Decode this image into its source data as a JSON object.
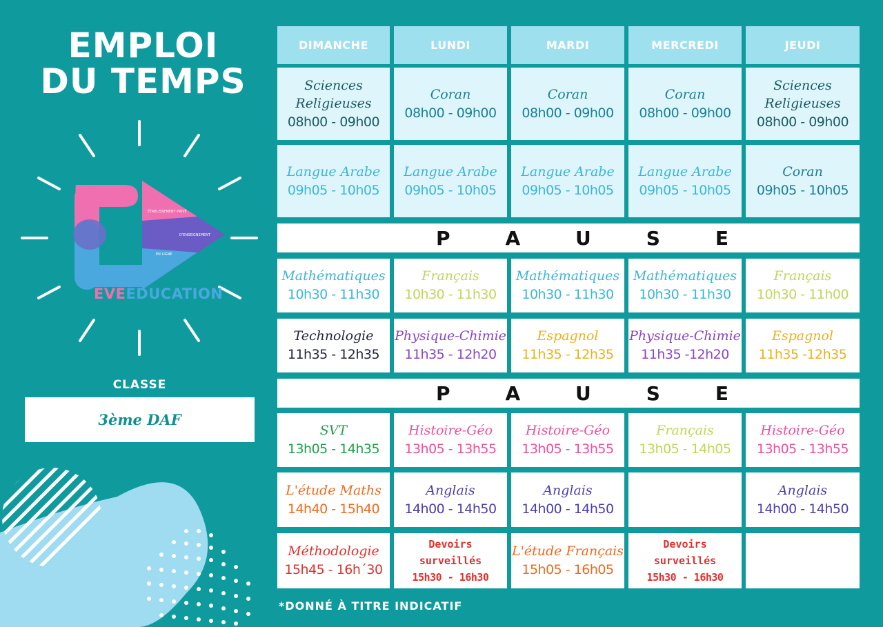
{
  "title_line1": "EMPLOI",
  "title_line2": "DU TEMPS",
  "logo_text_a": "EVE",
  "logo_text_b": "EDUCATION",
  "classe_label": "CLASSE",
  "classe_value": "3ème DAF",
  "note": "*DONNÉ À TITRE INDICATIF",
  "pause_letters": [
    "P",
    "A",
    "U",
    "S",
    "E"
  ],
  "days": [
    "DIMANCHE",
    "LUNDI",
    "MARDI",
    "MERCREDI",
    "JEUDI"
  ],
  "colors": {
    "background": "#0f9a9e",
    "header_cell": "#9fe0ef",
    "light_cell": "#ddf5fb",
    "logo_pink": "#f06fb0",
    "logo_blue": "#4aa8df",
    "logo_purple": "#5a4fb5"
  },
  "rows": [
    {
      "cells": [
        {
          "subject": "Sciences Religieuses",
          "time": "08h00 - 09h00",
          "color": "#1d5a60"
        },
        {
          "subject": "Coran",
          "time": "08h00 - 09h00",
          "color": "#1d7f93"
        },
        {
          "subject": "Coran",
          "time": "08h00 - 09h00",
          "color": "#1d7f93"
        },
        {
          "subject": "Coran",
          "time": "08h00 - 09h00",
          "color": "#1d7f93"
        },
        {
          "subject": "Sciences Religieuses",
          "time": "08h00 - 09h00",
          "color": "#1d5a60"
        }
      ]
    },
    {
      "cells": [
        {
          "subject": "Langue Arabe",
          "time": "09h05 - 10h05",
          "color": "#3cb6d8"
        },
        {
          "subject": "Langue Arabe",
          "time": "09h05 - 10h05",
          "color": "#3cb6d8"
        },
        {
          "subject": "Langue Arabe",
          "time": "09h05 - 10h05",
          "color": "#3cb6d8"
        },
        {
          "subject": "Langue Arabe",
          "time": "09h05 - 10h05",
          "color": "#3cb6d8"
        },
        {
          "subject": "Coran",
          "time": "09h05 - 10h05",
          "color": "#1d7f93"
        }
      ]
    },
    {
      "cells": [
        {
          "subject": "Mathématiques",
          "time": "10h30 - 11h30",
          "color": "#3cb6d8"
        },
        {
          "subject": "Français",
          "time": "10h30 - 11h30",
          "color": "#bfd65a"
        },
        {
          "subject": "Mathématiques",
          "time": "10h30 - 11h30",
          "color": "#3cb6d8"
        },
        {
          "subject": "Mathématiques",
          "time": "10h30 - 11h30",
          "color": "#3cb6d8"
        },
        {
          "subject": "Français",
          "time": "10h30 - 11h00",
          "color": "#bfd65a"
        }
      ]
    },
    {
      "cells": [
        {
          "subject": "Technologie",
          "time": "11h35 - 12h35",
          "color": "#23263a"
        },
        {
          "subject": "Physique-Chimie",
          "time": "11h35 - 12h20",
          "color": "#8a45c9"
        },
        {
          "subject": "Espagnol",
          "time": "11h35 - 12h35",
          "color": "#e8b21e"
        },
        {
          "subject": "Physique-Chimie",
          "time": "11h35 -12h20",
          "color": "#8a45c9"
        },
        {
          "subject": "Espagnol",
          "time": "11h35 -12h35",
          "color": "#e8b21e"
        }
      ]
    },
    {
      "cells": [
        {
          "subject": "SVT",
          "time": "13h05 - 14h35",
          "color": "#1f9e4c"
        },
        {
          "subject": "Histoire-Géo",
          "time": "13h05 - 13h55",
          "color": "#ef4f9a"
        },
        {
          "subject": "Histoire-Géo",
          "time": "13h05 - 13h55",
          "color": "#ef4f9a"
        },
        {
          "subject": "Français",
          "time": "13h05 - 14h05",
          "color": "#bfd65a"
        },
        {
          "subject": "Histoire-Géo",
          "time": "13h05 - 13h55",
          "color": "#ef4f9a"
        }
      ]
    },
    {
      "cells": [
        {
          "subject": "L'étude Maths",
          "time": "14h40 - 15h40",
          "color": "#ef6a1e"
        },
        {
          "subject": "Anglais",
          "time": "14h00 - 14h50",
          "color": "#4a3fa6"
        },
        {
          "subject": "Anglais",
          "time": "14h00 - 14h50",
          "color": "#4a3fa6"
        },
        {
          "subject": "",
          "time": "",
          "color": "#4a3fa6"
        },
        {
          "subject": "Anglais",
          "time": "14h00 - 14h50",
          "color": "#4a3fa6"
        }
      ]
    },
    {
      "cells": [
        {
          "subject": "Méthodologie",
          "time": "15h45 - 16h´30",
          "color": "#e0312e"
        },
        {
          "subject": "Devoirs surveillés",
          "time": "15h30 - 16h30",
          "color": "#e0312e"
        },
        {
          "subject": "L'étude Français",
          "time": "15h05 - 16h05",
          "color": "#ef6a1e"
        },
        {
          "subject": "Devoirs surveillés",
          "time": "15h30 - 16h30",
          "color": "#e0312e"
        },
        {
          "subject": "",
          "time": "",
          "color": "#e0312e"
        }
      ]
    }
  ]
}
